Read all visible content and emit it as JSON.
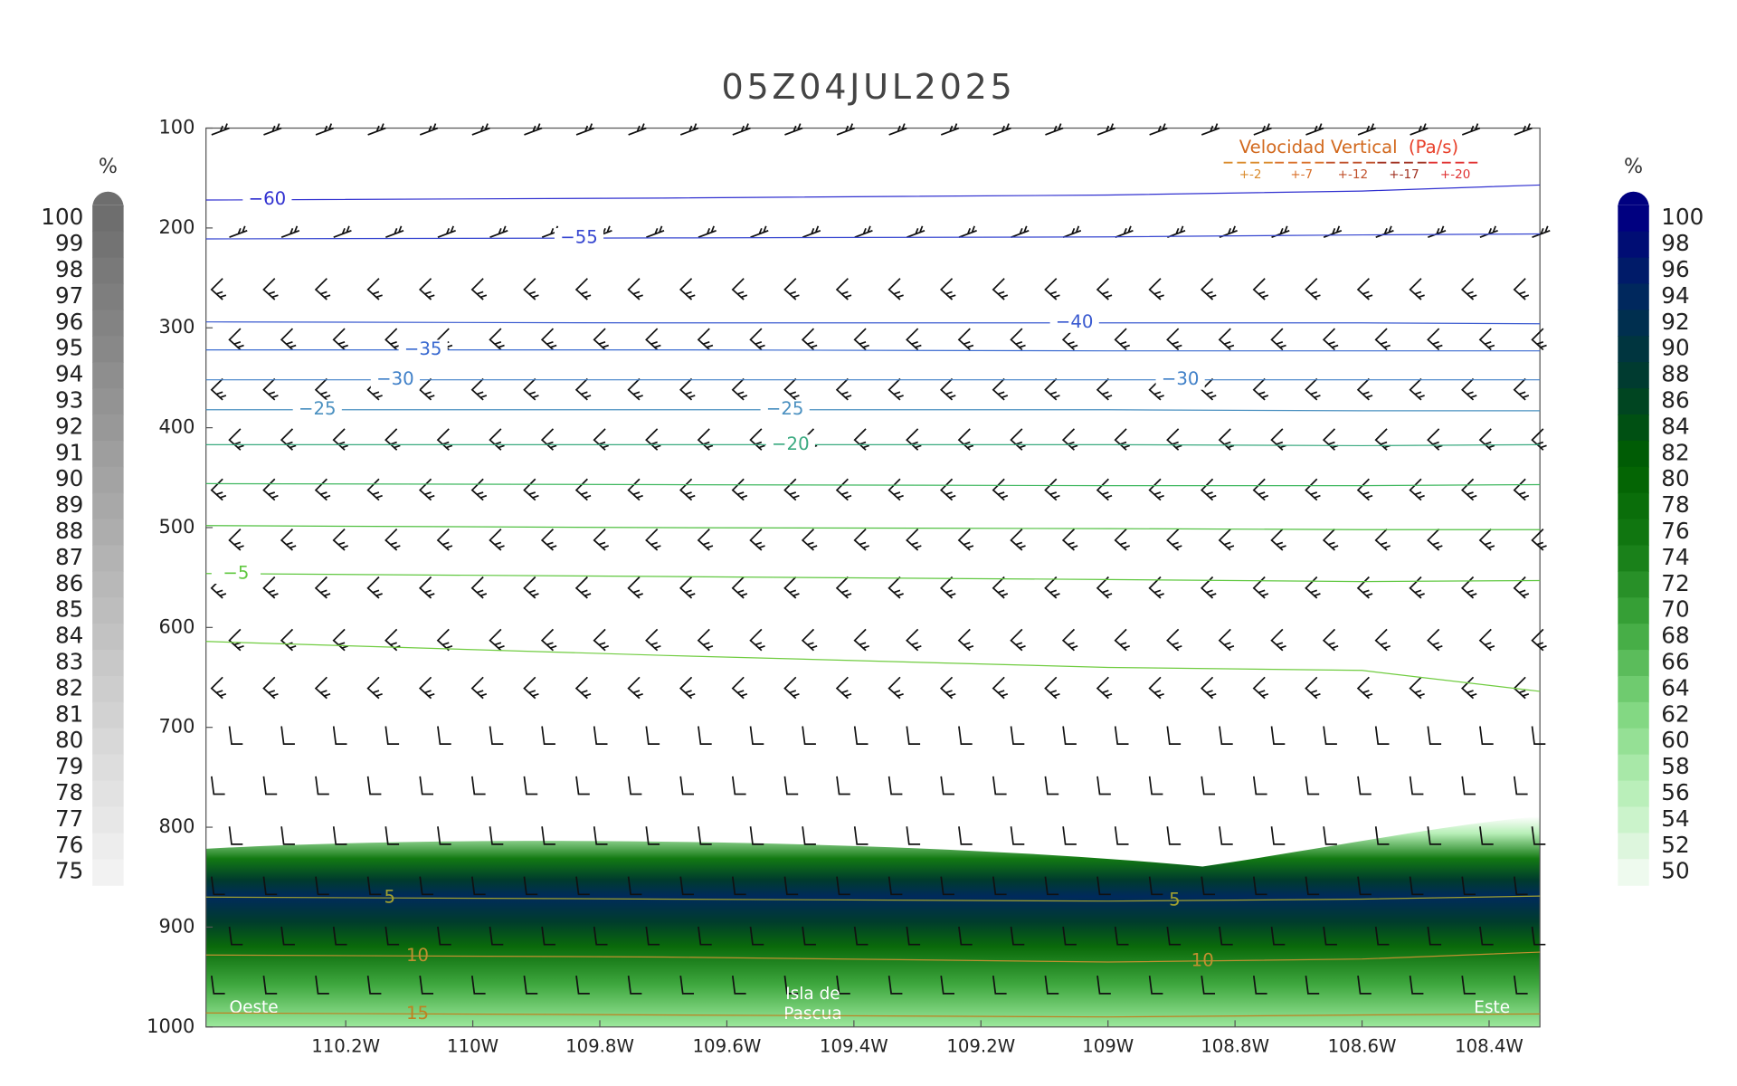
{
  "chart_data": {
    "type": "cross-section",
    "title": "05Z04JUL2025",
    "xlim": [
      -110.42,
      -108.32
    ],
    "xticks": [
      {
        "value": -110.2,
        "label": "110.2W"
      },
      {
        "value": -110,
        "label": "110W"
      },
      {
        "value": -109.8,
        "label": "109.8W"
      },
      {
        "value": -109.6,
        "label": "109.6W"
      },
      {
        "value": -109.4,
        "label": "109.4W"
      },
      {
        "value": -109.2,
        "label": "109.2W"
      },
      {
        "value": -109,
        "label": "109W"
      },
      {
        "value": -108.8,
        "label": "108.8W"
      },
      {
        "value": -108.6,
        "label": "108.6W"
      },
      {
        "value": -108.4,
        "label": "108.4W"
      }
    ],
    "ylim": [
      1000,
      100
    ],
    "yticks": [
      100,
      200,
      300,
      400,
      500,
      600,
      700,
      800,
      900,
      1000
    ],
    "contour_x": [
      -110.42,
      -109.7,
      -109.0,
      -108.6,
      -108.32
    ],
    "contours": [
      {
        "label": "−60",
        "color": "#3030d0",
        "pressure": [
          172,
          170,
          167,
          163,
          157
        ]
      },
      {
        "label": "−55",
        "color": "#3545d0",
        "pressure": [
          211,
          210,
          209,
          207,
          206
        ]
      },
      {
        "label": "−40",
        "color": "#3a5ad0",
        "pressure": [
          294,
          295,
          295,
          295,
          296
        ]
      },
      {
        "label": "−35",
        "color": "#3a6ad0",
        "pressure": [
          322,
          322,
          323,
          323,
          323
        ]
      },
      {
        "label": "−30",
        "color": "#4080c8",
        "pressure": [
          352,
          352,
          352,
          352,
          352
        ]
      },
      {
        "label": "−25",
        "color": "#4a90c0",
        "pressure": [
          382,
          382,
          382,
          383,
          383
        ]
      },
      {
        "label": "−20",
        "color": "#3aaa80",
        "pressure": [
          417,
          417,
          417,
          418,
          417
        ]
      },
      {
        "color": "#40b860",
        "pressure": [
          456,
          457,
          458,
          458,
          457
        ]
      },
      {
        "color": "#50c040",
        "pressure": [
          498,
          500,
          501,
          502,
          502
        ]
      },
      {
        "label": "−5",
        "color": "#60c840",
        "pressure": [
          546,
          549,
          552,
          554,
          553
        ]
      },
      {
        "color": "#70cc40",
        "pressure": [
          614,
          628,
          640,
          643,
          664
        ]
      },
      {
        "label": "5",
        "color": "#a0a030",
        "pressure": [
          870,
          872,
          874,
          872,
          869
        ]
      },
      {
        "label": "10",
        "color": "#c09030",
        "pressure": [
          928,
          930,
          935,
          932,
          925
        ]
      },
      {
        "label": "15",
        "color": "#c08020",
        "pressure": [
          986,
          988,
          990,
          988,
          987
        ]
      }
    ],
    "legend": {
      "title": "Velocidad Vertical",
      "unit": "(Pa/s)",
      "title_color": "#d2691e",
      "unit_color": "#e8402a",
      "entries": [
        {
          "label": "+-2",
          "color": "#d98a2a"
        },
        {
          "label": "+-7",
          "color": "#d9702a"
        },
        {
          "label": "+-12",
          "color": "#c0502a"
        },
        {
          "label": "+-17",
          "color": "#a03020"
        },
        {
          "label": "+-20",
          "color": "#e03030"
        }
      ]
    },
    "colorbars": [
      {
        "title": "%",
        "ticks": [
          100,
          99,
          98,
          97,
          96,
          95,
          94,
          93,
          92,
          91,
          90,
          89,
          88,
          87,
          86,
          85,
          84,
          83,
          82,
          81,
          80,
          79,
          78,
          77,
          76,
          75
        ],
        "ramp": [
          "#f2f2f2",
          "#6e6e6e"
        ]
      },
      {
        "title": "%",
        "ticks": [
          100,
          98,
          96,
          94,
          92,
          90,
          88,
          86,
          84,
          82,
          80,
          78,
          76,
          74,
          72,
          70,
          68,
          66,
          64,
          62,
          60,
          58,
          56,
          54,
          52,
          50
        ],
        "ramp": [
          "#eefaee",
          "#b8efb8",
          "#7ed67e",
          "#3fa83f",
          "#137a13",
          "#006000",
          "#003c2c",
          "#002a5c",
          "#000080"
        ]
      }
    ],
    "annotations": [
      "Oeste",
      "Isla de",
      "Pascua",
      "Este"
    ]
  }
}
